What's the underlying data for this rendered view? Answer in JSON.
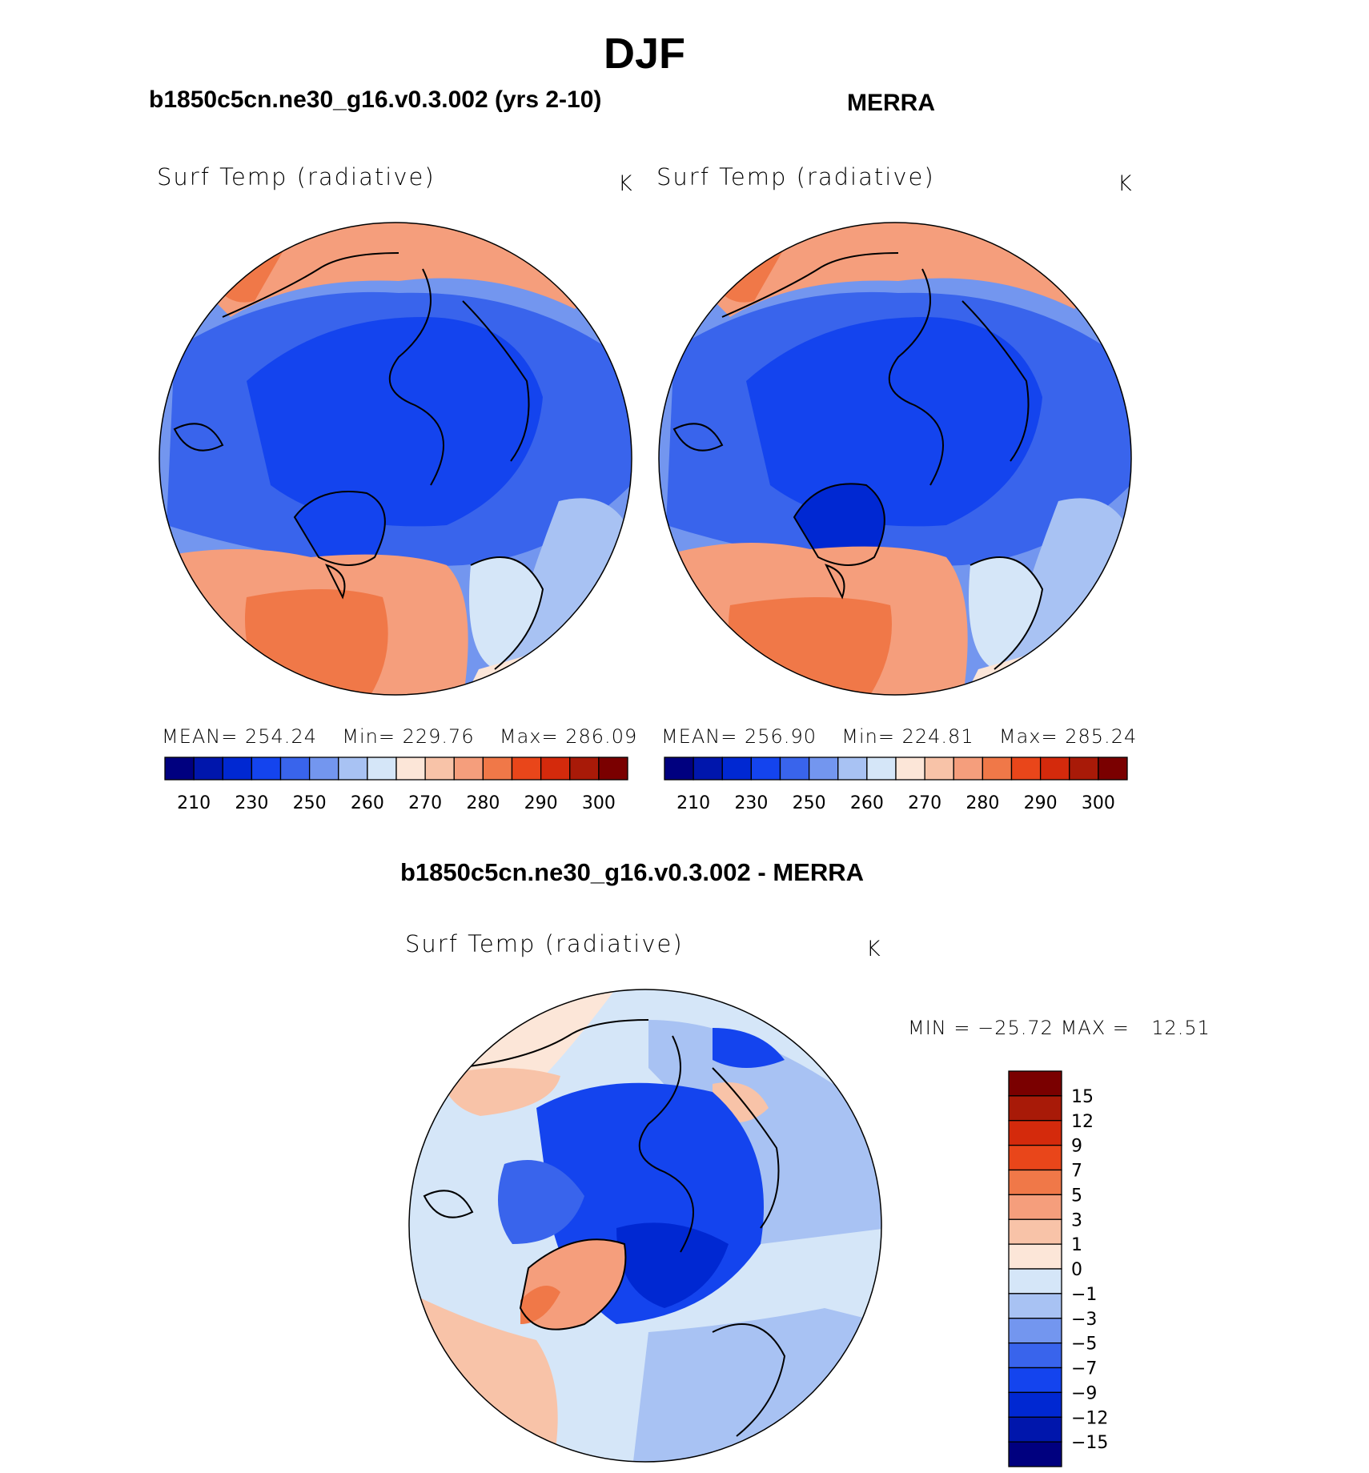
{
  "page_title": "DJF",
  "panels": [
    {
      "header": "b1850c5cn.ne30_g16.v0.3.002 (yrs 2-10)",
      "variable": "Surf Temp (radiative)",
      "units": "K",
      "stats": {
        "mean_label": "MEAN=",
        "mean": "254.24",
        "min_label": "Min=",
        "min": "229.76",
        "max_label": "Max=",
        "max": "286.09"
      }
    },
    {
      "header": "MERRA",
      "variable": "Surf Temp (radiative)",
      "units": "K",
      "stats": {
        "mean_label": "MEAN=",
        "mean": "256.90",
        "min_label": "Min=",
        "min": "224.81",
        "max_label": "Max=",
        "max": "285.24"
      }
    },
    {
      "header": "b1850c5cn.ne30_g16.v0.3.002 - MERRA",
      "variable": "Surf Temp (radiative)",
      "units": "K",
      "stats": {
        "min_label": "MIN =",
        "min": "−25.72",
        "max_label": "MAX =",
        "max": "12.51"
      }
    }
  ],
  "colors": {
    "temp_scale": [
      "#00007f",
      "#0016ac",
      "#0028d2",
      "#1444ee",
      "#3964ec",
      "#7396ef",
      "#a8c2f3",
      "#d5e6f8",
      "#fce6d8",
      "#f8c3a8",
      "#f59e7c",
      "#f07848",
      "#e9461a",
      "#d42a0c",
      "#a81a08",
      "#7a0000"
    ],
    "diff_scale": [
      "#00007f",
      "#0016ac",
      "#0028d2",
      "#1444ee",
      "#3964ec",
      "#7396ef",
      "#a8c2f3",
      "#d5e6f8",
      "#fce6d8",
      "#f8c3a8",
      "#f59e7c",
      "#f07848",
      "#e9461a",
      "#d42a0c",
      "#a81a08",
      "#7a0000"
    ],
    "ocean_warm": "#f09274",
    "ice_blue": "#2d5fe8"
  },
  "chart_data": [
    {
      "type": "heatmap",
      "title": "b1850c5cn.ne30_g16.v0.3.002 (yrs 2-10)",
      "projection": "polar-stereographic-north",
      "variable": "Surf Temp (radiative)",
      "units": "K",
      "colorbar": {
        "levels": [
          "210",
          "230",
          "250",
          "260",
          "270",
          "280",
          "290",
          "300"
        ],
        "n_colors": 16
      },
      "mean": 254.24,
      "min": 229.76,
      "max": 286.09
    },
    {
      "type": "heatmap",
      "title": "MERRA",
      "projection": "polar-stereographic-north",
      "variable": "Surf Temp (radiative)",
      "units": "K",
      "colorbar": {
        "levels": [
          "210",
          "230",
          "250",
          "260",
          "270",
          "280",
          "290",
          "300"
        ],
        "n_colors": 16
      },
      "mean": 256.9,
      "min": 224.81,
      "max": 285.24
    },
    {
      "type": "heatmap",
      "title": "b1850c5cn.ne30_g16.v0.3.002 - MERRA",
      "projection": "polar-stereographic-north",
      "variable": "Surf Temp (radiative)",
      "units": "K",
      "colorbar": {
        "levels": [
          "15",
          "12",
          "9",
          "7",
          "5",
          "3",
          "1",
          "0",
          "−1",
          "−3",
          "−5",
          "−7",
          "−9",
          "−12",
          "−15"
        ],
        "n_colors": 16
      },
      "min": -25.72,
      "max": 12.51
    }
  ]
}
